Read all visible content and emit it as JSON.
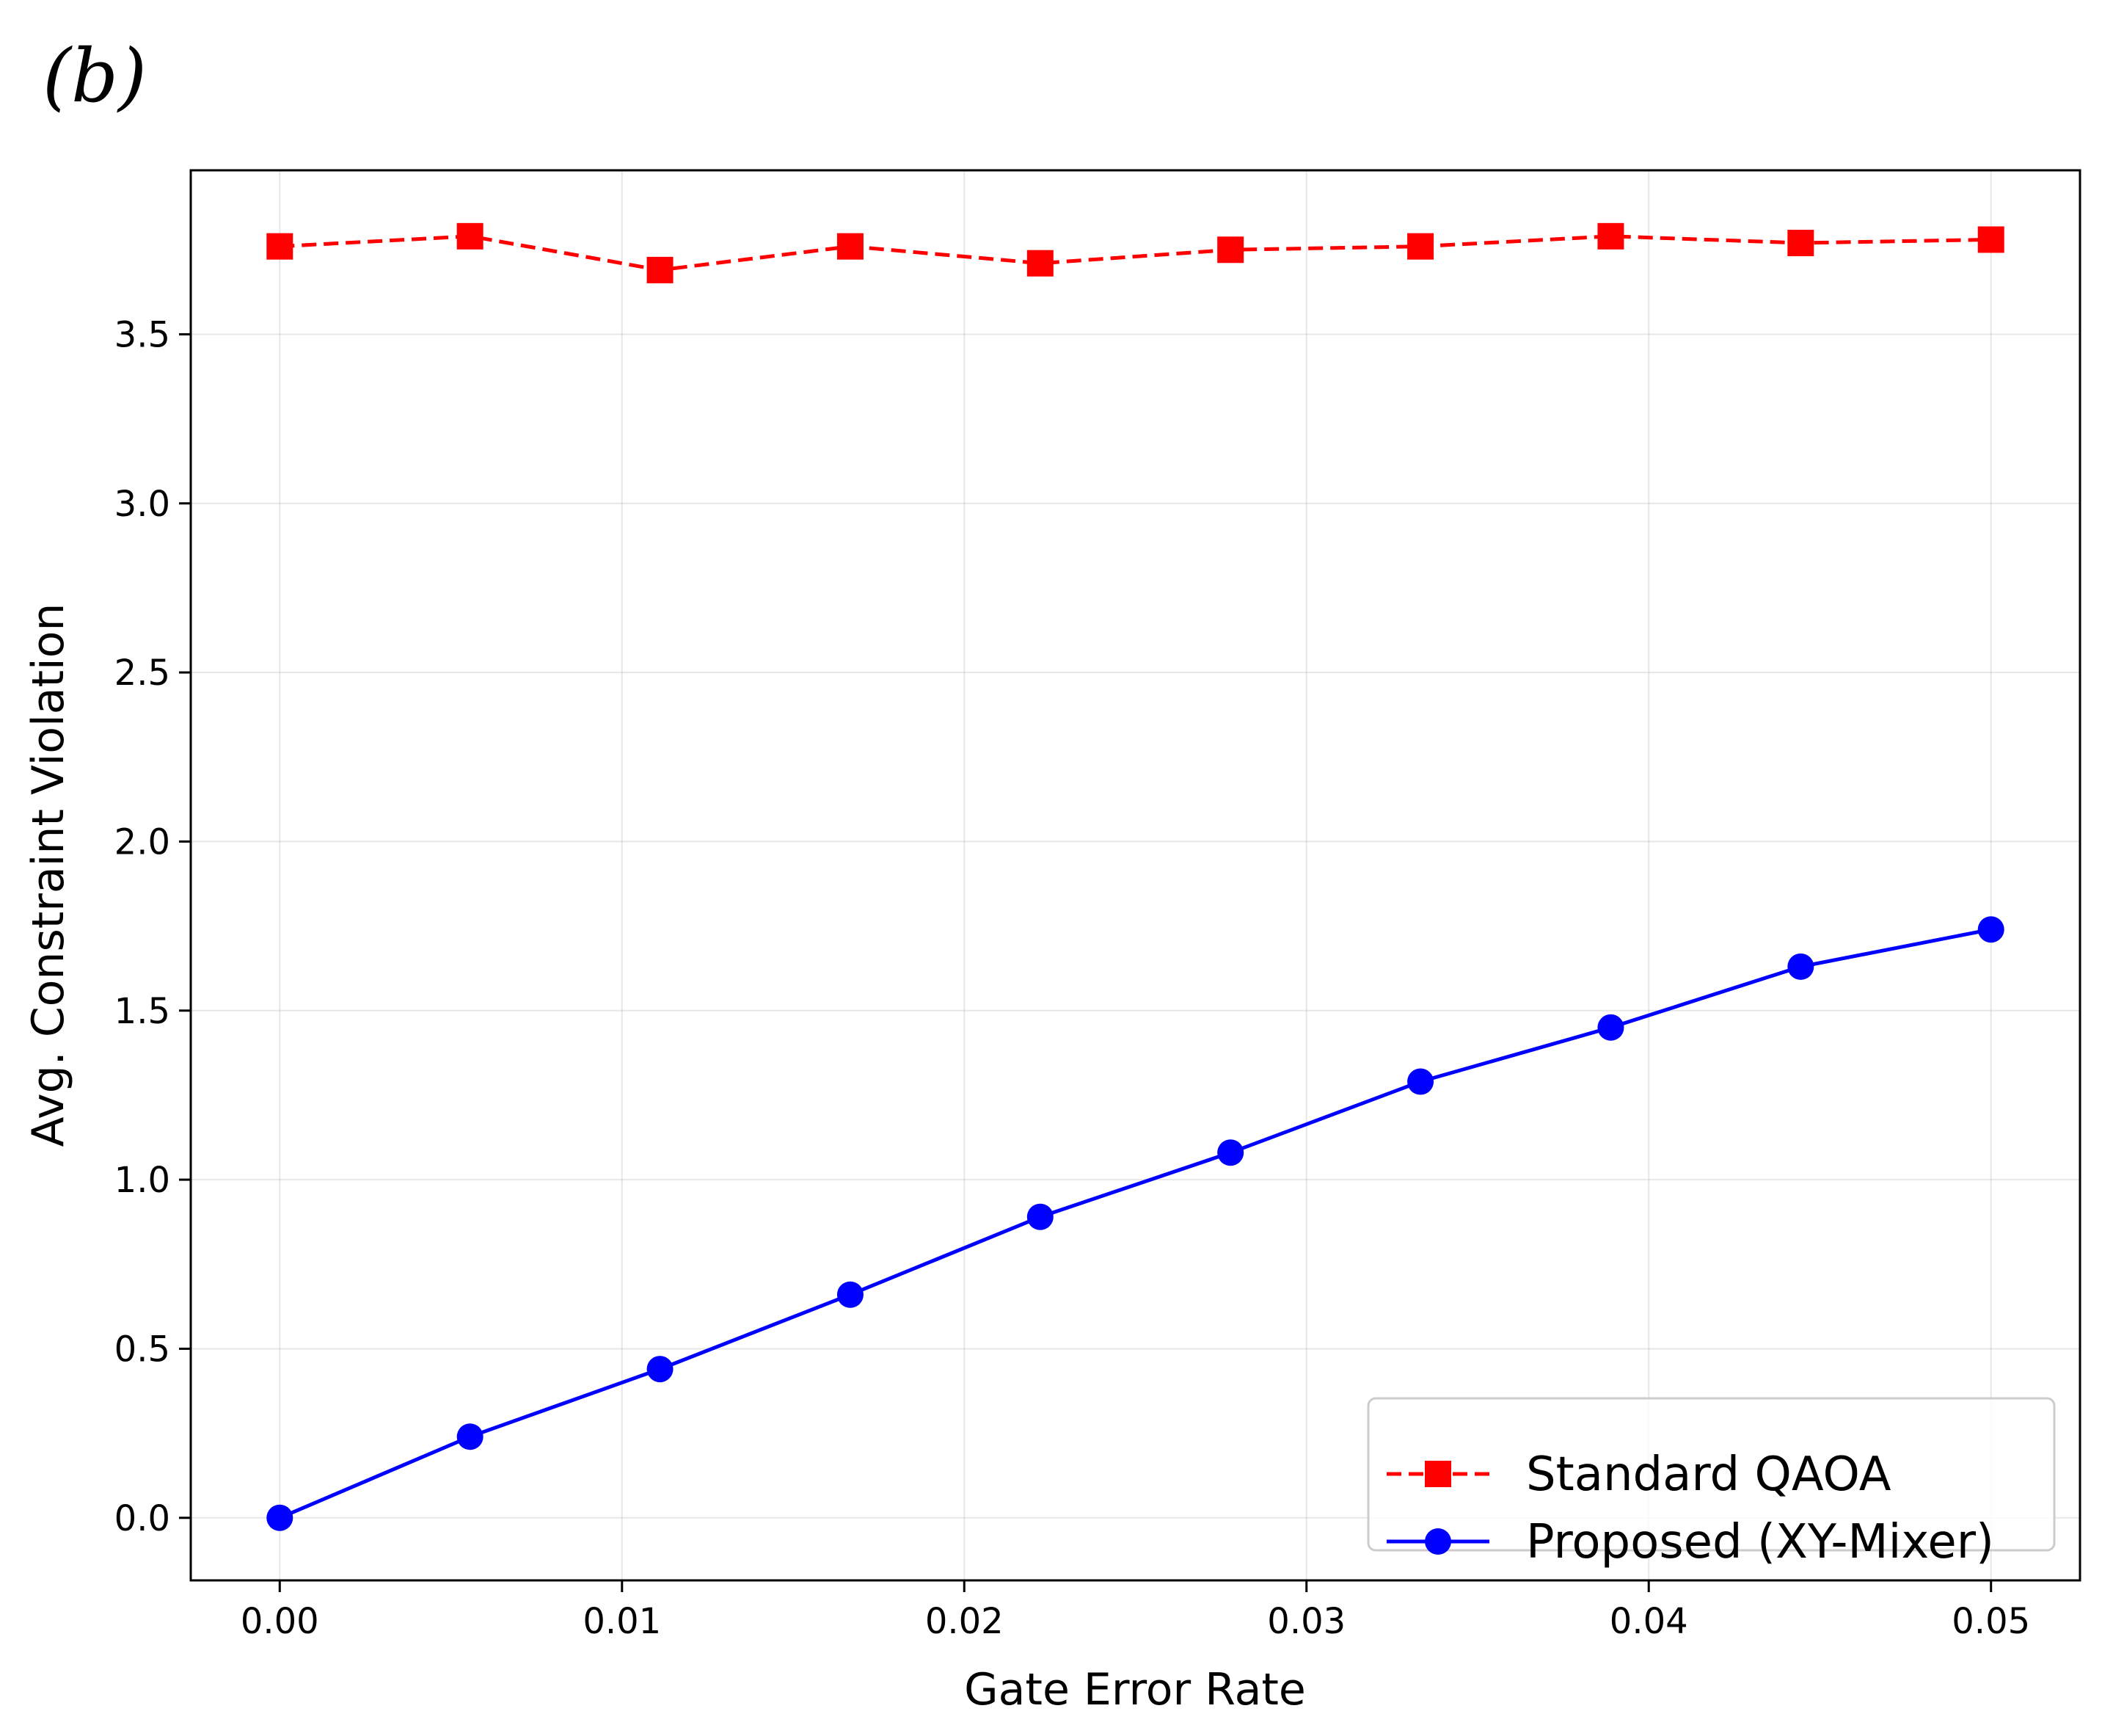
{
  "panel_label": "(b)",
  "chart_data": {
    "type": "line",
    "title": "",
    "xlabel": "Gate Error Rate",
    "ylabel": "Avg. Constraint Violation",
    "xlim": [
      -0.0026,
      0.0526
    ],
    "ylim": [
      -0.185,
      3.985
    ],
    "x_ticks": [
      0.0,
      0.01,
      0.02,
      0.03,
      0.04,
      0.05
    ],
    "x_tick_labels": [
      "0.00",
      "0.01",
      "0.02",
      "0.03",
      "0.04",
      "0.05"
    ],
    "y_ticks": [
      0.0,
      0.5,
      1.0,
      1.5,
      2.0,
      2.5,
      3.0,
      3.5
    ],
    "y_tick_labels": [
      "0.0",
      "0.5",
      "1.0",
      "1.5",
      "2.0",
      "2.5",
      "3.0",
      "3.5"
    ],
    "grid": true,
    "legend_position": "lower-right",
    "x": [
      0.0,
      0.00556,
      0.01111,
      0.01667,
      0.02222,
      0.02778,
      0.03333,
      0.03889,
      0.04444,
      0.05
    ],
    "series": [
      {
        "name": "Standard QAOA",
        "color": "#ff0000",
        "line_style": "dashed",
        "marker": "square",
        "values": [
          3.76,
          3.79,
          3.69,
          3.76,
          3.71,
          3.75,
          3.76,
          3.79,
          3.77,
          3.78
        ]
      },
      {
        "name": "Proposed (XY-Mixer)",
        "color": "#0000ff",
        "line_style": "solid",
        "marker": "circle",
        "values": [
          0.0,
          0.24,
          0.44,
          0.66,
          0.89,
          1.08,
          1.29,
          1.45,
          1.63,
          1.74
        ]
      }
    ]
  }
}
